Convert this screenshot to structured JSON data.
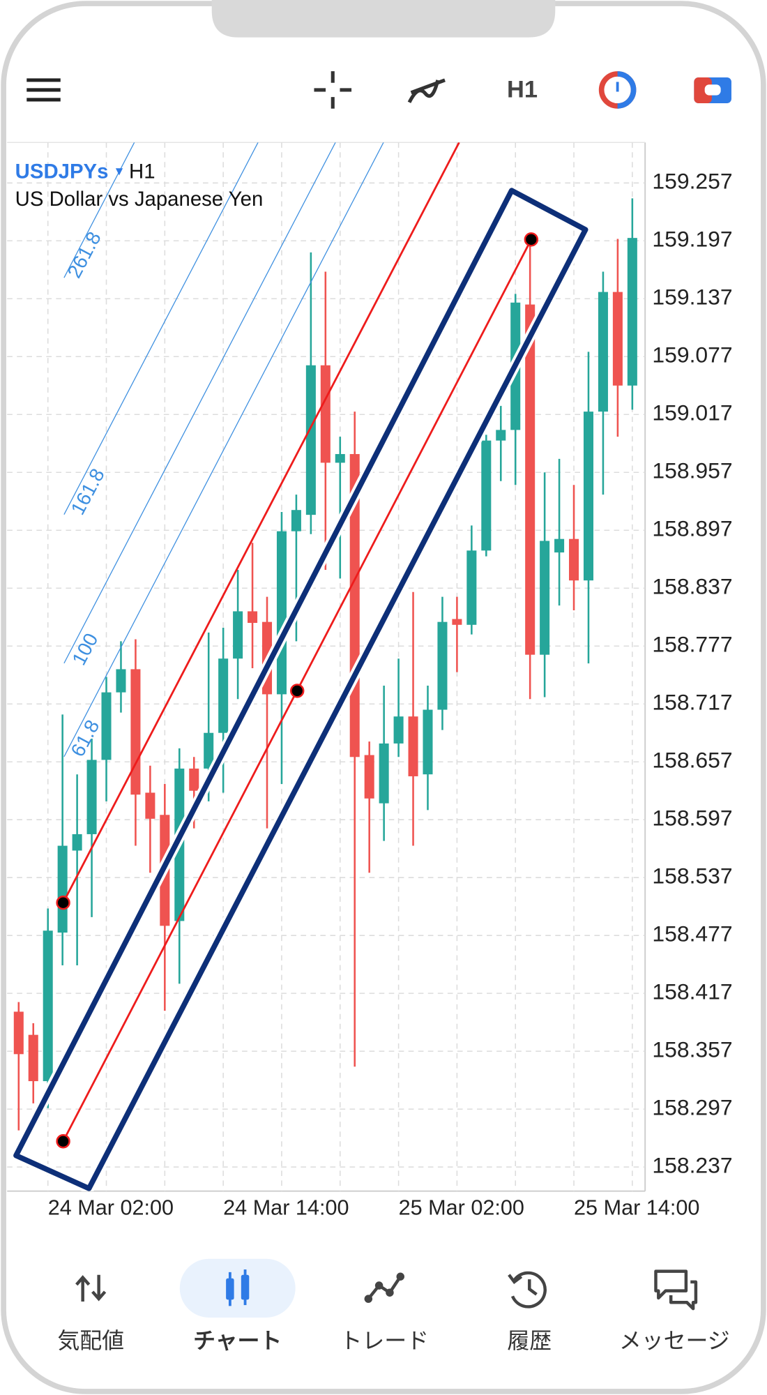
{
  "toolbar": {
    "timeframe": "H1"
  },
  "chart_header": {
    "symbol": "USDJPYs",
    "timeframe": "H1",
    "description": "US Dollar vs Japanese Yen"
  },
  "chart_data": {
    "type": "candlestick",
    "categories": [
      null,
      null,
      "24 Mar 02:00",
      null,
      null,
      null,
      null,
      null,
      null,
      null,
      null,
      null,
      null,
      null,
      "24 Mar 14:00",
      null,
      null,
      null,
      null,
      null,
      null,
      null,
      null,
      null,
      null,
      null,
      "25 Mar 02:00",
      null,
      null,
      null,
      null,
      null,
      null,
      null,
      null,
      null,
      null,
      null,
      "25 Mar 14:00",
      null,
      null,
      null,
      null
    ],
    "open": [
      158.398,
      158.374,
      158.326,
      158.48,
      158.565,
      158.582,
      158.659,
      158.729,
      158.753,
      158.625,
      158.602,
      158.492,
      158.65,
      158.65,
      158.687,
      158.764,
      158.813,
      158.802,
      158.727,
      158.896,
      158.913,
      159.068,
      158.967,
      158.976,
      158.664,
      158.614,
      158.676,
      158.704,
      158.644,
      158.711,
      158.805,
      158.799,
      158.876,
      158.99,
      159.001,
      159.131,
      158.768,
      158.874,
      158.888,
      158.845,
      159.02,
      159.144,
      159.047
    ],
    "high": [
      158.408,
      158.386,
      158.505,
      158.706,
      158.644,
      158.681,
      158.745,
      158.782,
      158.784,
      158.653,
      158.634,
      158.671,
      158.662,
      158.791,
      158.796,
      158.856,
      158.884,
      158.828,
      158.916,
      158.934,
      159.185,
      159.165,
      158.994,
      159.02,
      158.678,
      158.736,
      158.764,
      158.833,
      158.736,
      158.828,
      158.828,
      158.902,
      158.996,
      159.026,
      159.142,
      159.199,
      158.957,
      158.971,
      158.944,
      159.082,
      159.165,
      159.199,
      159.241
    ],
    "low": [
      158.275,
      158.303,
      158.298,
      158.446,
      158.446,
      158.496,
      158.616,
      158.708,
      158.57,
      158.542,
      158.399,
      158.427,
      158.588,
      158.616,
      158.625,
      158.722,
      158.754,
      158.588,
      158.634,
      158.782,
      158.893,
      158.856,
      158.847,
      158.341,
      158.542,
      158.575,
      158.662,
      158.57,
      158.607,
      158.69,
      158.75,
      158.789,
      158.87,
      158.948,
      158.944,
      158.722,
      158.724,
      158.819,
      158.814,
      158.759,
      158.934,
      158.994,
      159.022
    ],
    "close": [
      158.354,
      158.326,
      158.482,
      158.57,
      158.582,
      158.659,
      158.729,
      158.753,
      158.623,
      158.598,
      158.487,
      158.65,
      158.627,
      158.687,
      158.764,
      158.813,
      158.801,
      158.727,
      158.896,
      158.918,
      159.068,
      158.967,
      158.976,
      158.662,
      158.619,
      158.676,
      158.704,
      158.642,
      158.711,
      158.802,
      158.799,
      158.876,
      158.99,
      159.001,
      159.133,
      158.768,
      158.886,
      158.888,
      158.845,
      159.02,
      159.144,
      159.047,
      159.2
    ],
    "up_color": "#26a69a",
    "down_color": "#ef5350",
    "ylim": [
      158.212,
      159.299
    ],
    "yticks": [
      159.257,
      159.197,
      159.137,
      159.077,
      159.017,
      158.957,
      158.897,
      158.837,
      158.777,
      158.717,
      158.657,
      158.597,
      158.537,
      158.477,
      158.417,
      158.357,
      158.297,
      158.237
    ],
    "grid": true,
    "fibonacci_levels": [
      261.8,
      161.8,
      100,
      61.8
    ]
  },
  "nav": {
    "items": [
      "気配値",
      "チャート",
      "トレード",
      "履歴",
      "メッセージ"
    ]
  }
}
